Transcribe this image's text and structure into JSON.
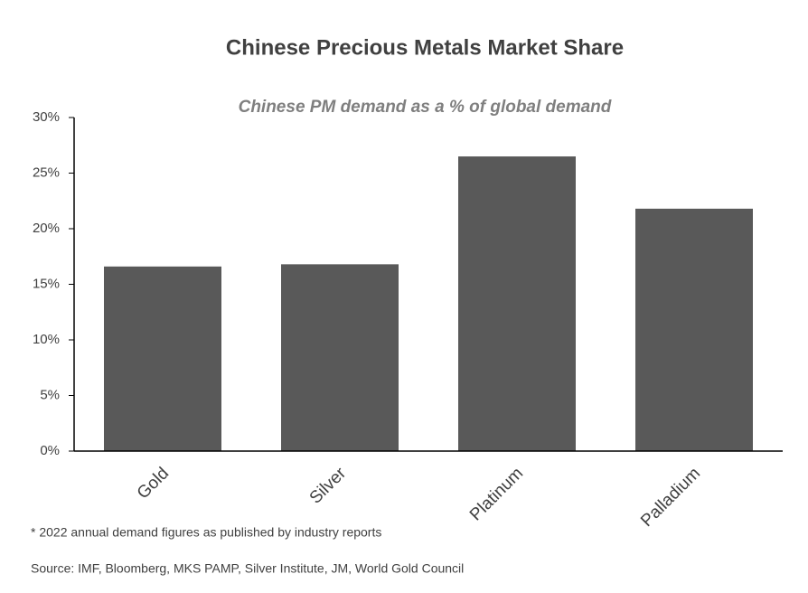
{
  "chart_data": {
    "type": "bar",
    "title": "Chinese Precious Metals Market Share",
    "subtitle": "Chinese PM demand as a % of global demand",
    "categories": [
      "Gold",
      "Silver",
      "Platinum",
      "Palladium"
    ],
    "values": [
      16.6,
      16.8,
      26.5,
      21.8
    ],
    "color": "#595959",
    "ylim": [
      0,
      30
    ],
    "yticks": [
      {
        "value": 0,
        "label": "0%"
      },
      {
        "value": 5,
        "label": "5%"
      },
      {
        "value": 10,
        "label": "10%"
      },
      {
        "value": 15,
        "label": "15%"
      },
      {
        "value": 20,
        "label": "20%"
      },
      {
        "value": 25,
        "label": "25%"
      },
      {
        "value": 30,
        "label": "30%"
      }
    ],
    "grid": false,
    "footnote": "* 2022 annual demand figures as published by industry reports",
    "source": "Source: IMF, Bloomberg, MKS PAMP, Silver Institute, JM,  World Gold Council"
  }
}
